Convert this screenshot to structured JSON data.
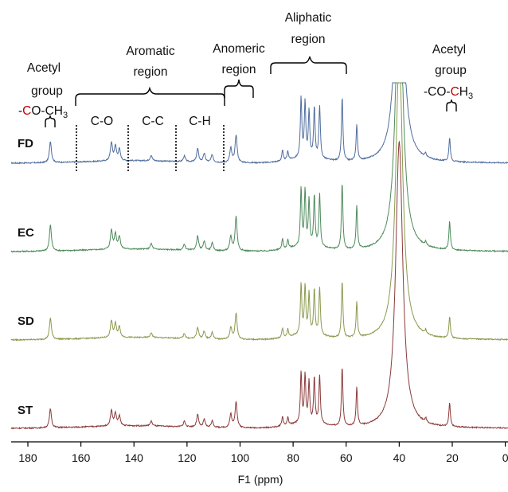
{
  "chart_data": {
    "type": "line",
    "title": "",
    "xlabel": "F1 (ppm)",
    "ylabel": "",
    "xlim": [
      184,
      0
    ],
    "x_reversed": true,
    "grid": false,
    "x_ticks": [
      180,
      160,
      140,
      120,
      100,
      80,
      60,
      40,
      20,
      0
    ],
    "x_tick_labels": [
      "180",
      "160",
      "140",
      "120",
      "100",
      "80",
      "60",
      "40",
      "20",
      "0"
    ],
    "series": [
      {
        "name": "FD",
        "color": "#4f6d9e",
        "peaks": [
          [
            171.5,
            0.45
          ],
          [
            148.5,
            0.38
          ],
          [
            147,
            0.3
          ],
          [
            145.5,
            0.24
          ],
          [
            133.5,
            0.12
          ],
          [
            121,
            0.12
          ],
          [
            116,
            0.28
          ],
          [
            113.5,
            0.18
          ],
          [
            110.5,
            0.16
          ],
          [
            103.5,
            0.3
          ],
          [
            101.5,
            0.58
          ],
          [
            84,
            0.22
          ],
          [
            82,
            0.18
          ],
          [
            77,
            1.25
          ],
          [
            75.5,
            1.15
          ],
          [
            74,
            0.95
          ],
          [
            72,
            1.05
          ],
          [
            70,
            1.1
          ],
          [
            61.5,
            1.35
          ],
          [
            56,
            0.75
          ],
          [
            40,
            6.0
          ],
          [
            30,
            0.08
          ],
          [
            21,
            0.5
          ]
        ]
      },
      {
        "name": "EC",
        "color": "#4e8a5c",
        "peaks": [
          [
            171.5,
            0.55
          ],
          [
            148.5,
            0.4
          ],
          [
            147,
            0.32
          ],
          [
            145.5,
            0.26
          ],
          [
            133.5,
            0.12
          ],
          [
            121,
            0.12
          ],
          [
            116,
            0.3
          ],
          [
            113.5,
            0.2
          ],
          [
            110.5,
            0.16
          ],
          [
            103.5,
            0.3
          ],
          [
            101.5,
            0.72
          ],
          [
            84,
            0.22
          ],
          [
            82,
            0.18
          ],
          [
            77,
            1.2
          ],
          [
            75.5,
            1.15
          ],
          [
            74,
            0.95
          ],
          [
            72,
            1.05
          ],
          [
            70,
            1.1
          ],
          [
            61.5,
            1.4
          ],
          [
            56,
            0.9
          ],
          [
            40,
            6.0
          ],
          [
            30,
            0.08
          ],
          [
            21,
            0.6
          ]
        ]
      },
      {
        "name": "SD",
        "color": "#8a9a4e",
        "peaks": [
          [
            171.5,
            0.45
          ],
          [
            148.5,
            0.35
          ],
          [
            147,
            0.28
          ],
          [
            145.5,
            0.22
          ],
          [
            133.5,
            0.1
          ],
          [
            121,
            0.1
          ],
          [
            116,
            0.24
          ],
          [
            113.5,
            0.16
          ],
          [
            110.5,
            0.14
          ],
          [
            103.5,
            0.25
          ],
          [
            101.5,
            0.55
          ],
          [
            84,
            0.2
          ],
          [
            82,
            0.16
          ],
          [
            77,
            1.05
          ],
          [
            75.5,
            1.0
          ],
          [
            74,
            0.85
          ],
          [
            72,
            0.95
          ],
          [
            70,
            1.0
          ],
          [
            61.5,
            1.2
          ],
          [
            56,
            0.75
          ],
          [
            40,
            6.0
          ],
          [
            30,
            0.08
          ],
          [
            21,
            0.45
          ]
        ]
      },
      {
        "name": "ST",
        "color": "#8b3a3a",
        "peaks": [
          [
            171.5,
            0.4
          ],
          [
            148.5,
            0.32
          ],
          [
            147,
            0.26
          ],
          [
            145.5,
            0.2
          ],
          [
            133.5,
            0.1
          ],
          [
            121,
            0.12
          ],
          [
            116,
            0.26
          ],
          [
            113.5,
            0.16
          ],
          [
            110.5,
            0.14
          ],
          [
            103.5,
            0.28
          ],
          [
            101.5,
            0.55
          ],
          [
            84,
            0.2
          ],
          [
            82,
            0.16
          ],
          [
            77,
            1.05
          ],
          [
            75.5,
            1.0
          ],
          [
            74,
            0.85
          ],
          [
            72,
            0.95
          ],
          [
            70,
            1.0
          ],
          [
            61.5,
            1.25
          ],
          [
            56,
            0.8
          ],
          [
            40,
            6.0
          ],
          [
            30,
            0.08
          ],
          [
            21,
            0.5
          ]
        ]
      }
    ],
    "annotations": {
      "acetyl_left_line1": "Acetyl",
      "acetyl_left_line2": "group",
      "acetyl_left_formula": "-CO-CH",
      "acetyl_left_subscript": "3",
      "aromatic_line1": "Aromatic",
      "aromatic_line2": "region",
      "anomeric_line1": "Anomeric",
      "anomeric_line2": "region",
      "aliphatic_line1": "Aliphatic",
      "aliphatic_line2": "region",
      "acetyl_right_line1": "Acetyl",
      "acetyl_right_line2": "group",
      "acetyl_right_formula": "-CO-CH",
      "acetyl_right_subscript": "3",
      "sub_co": "C-O",
      "sub_cc": "C-C",
      "sub_ch": "C-H",
      "highlight_color": "#c00000"
    }
  }
}
